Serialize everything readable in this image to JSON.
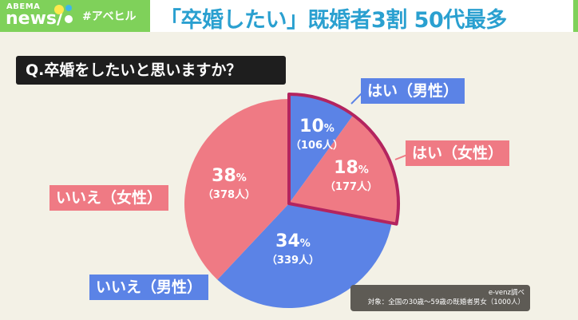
{
  "header": {
    "brand_top": "ABEMA",
    "brand_bottom": "news/",
    "hashtag": "#アベヒル",
    "headline": "「卒婚したい」既婚者3割 50代最多"
  },
  "colors": {
    "blue": "#5b83e6",
    "pink": "#ef7a84",
    "highlight_border": "#b3245f",
    "green": "#7fd15a"
  },
  "chart_data": {
    "type": "pie",
    "title": "Q.卒婚をしたいと思いますか？",
    "slices": [
      {
        "label": "はい（男性）",
        "percent": 10,
        "percent_text": "10",
        "count_text": "（106人）",
        "color": "#5b83e6",
        "highlighted": true
      },
      {
        "label": "はい（女性）",
        "percent": 18,
        "percent_text": "18",
        "count_text": "（177人）",
        "color": "#ef7a84",
        "highlighted": true
      },
      {
        "label": "いいえ（男性）",
        "percent": 34,
        "percent_text": "34",
        "count_text": "（339人）",
        "color": "#5b83e6",
        "highlighted": false
      },
      {
        "label": "いいえ（女性）",
        "percent": 38,
        "percent_text": "38",
        "count_text": "（378人）",
        "color": "#ef7a84",
        "highlighted": false
      }
    ],
    "percent_unit": "%",
    "start": "top",
    "direction": "clockwise"
  },
  "source": {
    "line1": "e-venz調べ",
    "line2": "対象：全国の30歳〜59歳の既婚者男女（1000人）"
  }
}
